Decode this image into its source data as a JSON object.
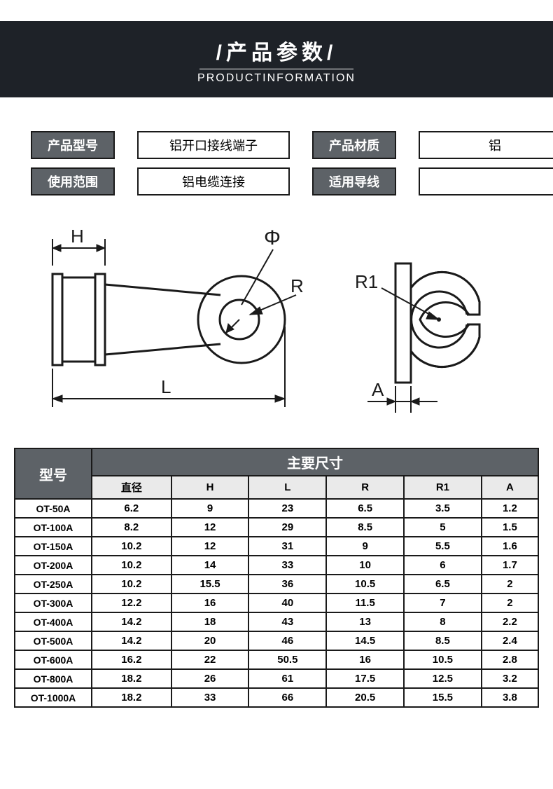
{
  "header": {
    "title_cn": "/产品参数/",
    "title_en": "PRODUCTINFORMATION"
  },
  "info": {
    "model_label": "产品型号",
    "model_value": "铝开口接线端子",
    "material_label": "产品材质",
    "material_value": "铝",
    "scope_label": "使用范围",
    "scope_value": "铝电缆连接",
    "wire_label": "适用导线",
    "wire_value": ""
  },
  "diagram": {
    "labels": {
      "H": "H",
      "phi": "Φ",
      "R": "R",
      "L": "L",
      "R1": "R1",
      "A": "A"
    },
    "stroke": "#1a1a1a",
    "thin_stroke": "#1a1a1a",
    "font": "26"
  },
  "spec": {
    "model_header": "型号",
    "group_header": "主要尺寸",
    "columns": [
      "直径",
      "H",
      "L",
      "R",
      "R1",
      "A"
    ],
    "rows": [
      [
        "OT-50A",
        "6.2",
        "9",
        "23",
        "6.5",
        "3.5",
        "1.2"
      ],
      [
        "OT-100A",
        "8.2",
        "12",
        "29",
        "8.5",
        "5",
        "1.5"
      ],
      [
        "OT-150A",
        "10.2",
        "12",
        "31",
        "9",
        "5.5",
        "1.6"
      ],
      [
        "OT-200A",
        "10.2",
        "14",
        "33",
        "10",
        "6",
        "1.7"
      ],
      [
        "OT-250A",
        "10.2",
        "15.5",
        "36",
        "10.5",
        "6.5",
        "2"
      ],
      [
        "OT-300A",
        "12.2",
        "16",
        "40",
        "11.5",
        "7",
        "2"
      ],
      [
        "OT-400A",
        "14.2",
        "18",
        "43",
        "13",
        "8",
        "2.2"
      ],
      [
        "OT-500A",
        "14.2",
        "20",
        "46",
        "14.5",
        "8.5",
        "2.4"
      ],
      [
        "OT-600A",
        "16.2",
        "22",
        "50.5",
        "16",
        "10.5",
        "2.8"
      ],
      [
        "OT-800A",
        "18.2",
        "26",
        "61",
        "17.5",
        "12.5",
        "3.2"
      ],
      [
        "OT-1000A",
        "18.2",
        "33",
        "66",
        "20.5",
        "15.5",
        "3.8"
      ]
    ]
  },
  "colors": {
    "header_bg": "#1e2228",
    "label_bg": "#5d6267",
    "sub_bg": "#eaeaea",
    "border": "#1a1a1a"
  }
}
